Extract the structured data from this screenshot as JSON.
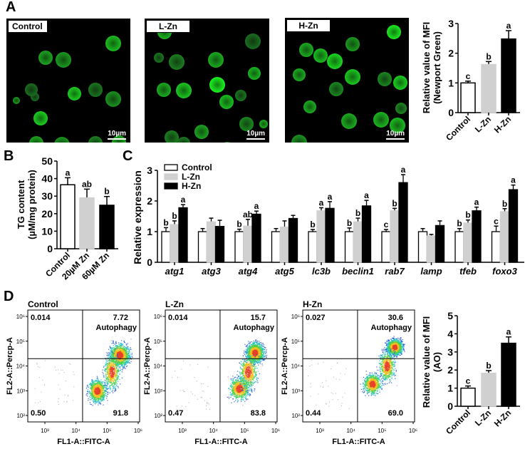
{
  "panels": {
    "A": {
      "letter": "A"
    },
    "B": {
      "letter": "B"
    },
    "C": {
      "letter": "C"
    },
    "D": {
      "letter": "D"
    }
  },
  "microscopy": [
    {
      "label": "Control",
      "scale_bar": "10µm"
    },
    {
      "label": "L-Zn",
      "scale_bar": "10µm"
    },
    {
      "label": "H-Zn",
      "scale_bar": "10µm"
    }
  ],
  "flow": {
    "x_axis_label": "FL1-A::FITC-A",
    "y_axis_label": "FL2-A::Percp-A",
    "x_ticks": [
      "10³",
      "10⁴",
      "10⁵",
      "10⁶"
    ],
    "y_ticks": [
      "10²",
      "10³",
      "10⁴",
      "10⁵",
      "10⁶"
    ],
    "gate_label": "Autophagy",
    "plots": [
      {
        "title": "Control",
        "ul": "0.014",
        "ur": "7.72",
        "ll": "0.50",
        "lr": "91.8"
      },
      {
        "title": "L-Zn",
        "ul": "0.014",
        "ur": "15.7",
        "ll": "0.47",
        "lr": "83.8"
      },
      {
        "title": "H-Zn",
        "ul": "0.027",
        "ur": "30.6",
        "ll": "0.44",
        "lr": "69.0"
      }
    ]
  },
  "colors": {
    "control": "#ffffff",
    "l_zn": "#d0d0d0",
    "h_zn": "#000000",
    "fluor_green": "#33cc33"
  },
  "chart_data": [
    {
      "id": "A",
      "type": "bar",
      "title": "",
      "ylabel": "Relative value of MFI (Newport Green)",
      "xlabel": "",
      "categories": [
        "Control",
        "L-Zn",
        "H-Zn"
      ],
      "values": [
        1.0,
        1.62,
        2.48
      ],
      "errors": [
        0.06,
        0.1,
        0.28
      ],
      "significance": [
        "c",
        "b",
        "a"
      ],
      "ylim": [
        0,
        3
      ],
      "yticks": [
        "0",
        "1",
        "2",
        "3"
      ]
    },
    {
      "id": "B",
      "type": "bar",
      "title": "",
      "ylabel": "TG content",
      "ylabel2": "(µM/mg protein)",
      "xlabel": "",
      "categories": [
        "Control",
        "20µM Zn",
        "60µM Zn"
      ],
      "values": [
        36.5,
        29.0,
        24.8
      ],
      "errors": [
        4.0,
        5.0,
        5.0
      ],
      "significance": [
        "a",
        "ab",
        "b"
      ],
      "ylim": [
        0,
        50
      ],
      "yticks": [
        "0",
        "10",
        "20",
        "30",
        "40",
        "50"
      ]
    },
    {
      "id": "C",
      "type": "bar",
      "title": "",
      "ylabel": "Relative expression",
      "xlabel": "",
      "categories": [
        "atg1",
        "atg3",
        "atg4",
        "atg5",
        "lc3b",
        "beclin1",
        "rab7",
        "lamp",
        "tfeb",
        "foxo3"
      ],
      "series": [
        {
          "name": "Control",
          "values": [
            1.0,
            1.0,
            1.0,
            1.0,
            1.0,
            1.0,
            1.0,
            1.0,
            1.0,
            1.0
          ],
          "errors": [
            0.13,
            0.1,
            0.08,
            0.1,
            0.07,
            0.12,
            0.07,
            0.1,
            0.1,
            0.18
          ],
          "significance": [
            "b",
            "",
            "b",
            "",
            "b",
            "b",
            "c",
            "",
            "b",
            "c"
          ]
        },
        {
          "name": "L-Zn",
          "values": [
            1.23,
            1.32,
            1.18,
            1.15,
            1.68,
            1.32,
            1.68,
            0.86,
            1.28,
            1.65
          ],
          "errors": [
            0.12,
            0.12,
            0.22,
            0.2,
            0.1,
            0.12,
            0.08,
            0.05,
            0.1,
            0.1
          ],
          "significance": [
            "b",
            "",
            "ab",
            "",
            "a",
            "b",
            "b",
            "",
            "b",
            "b"
          ]
        },
        {
          "name": "H-Zn",
          "values": [
            1.78,
            1.17,
            1.57,
            1.43,
            1.76,
            1.84,
            2.6,
            1.2,
            1.68,
            2.37
          ],
          "errors": [
            0.1,
            0.2,
            0.1,
            0.1,
            0.22,
            0.18,
            0.26,
            0.15,
            0.12,
            0.15
          ],
          "significance": [
            "a",
            "",
            "a",
            "",
            "a",
            "a",
            "a",
            "",
            "a",
            "a"
          ]
        }
      ],
      "legend": [
        "Control",
        "L-Zn",
        "H-Zn"
      ],
      "legend_position": "upper-left",
      "ylim": [
        0,
        3
      ],
      "yticks": [
        "0",
        "1",
        "2",
        "3"
      ]
    },
    {
      "id": "D",
      "type": "bar",
      "title": "",
      "ylabel": "Relative value of MFI (AO)",
      "xlabel": "",
      "categories": [
        "Control",
        "L-Zn",
        "H-Zn"
      ],
      "values": [
        1.0,
        1.82,
        3.48
      ],
      "errors": [
        0.12,
        0.15,
        0.35
      ],
      "significance": [
        "c",
        "b",
        "a"
      ],
      "ylim": [
        0,
        5
      ],
      "yticks": [
        "0",
        "1",
        "2",
        "3",
        "4",
        "5"
      ]
    }
  ]
}
